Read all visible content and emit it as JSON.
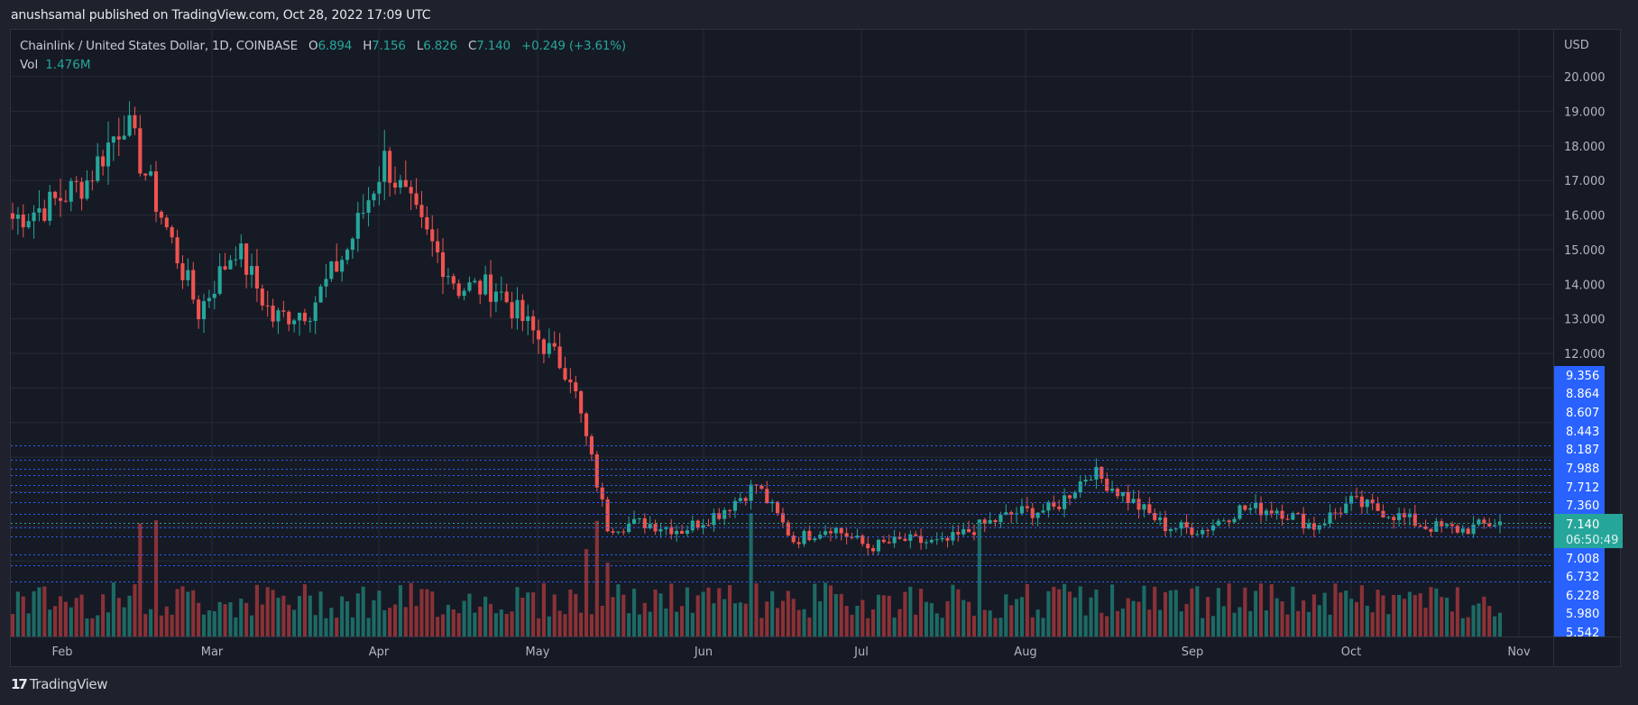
{
  "header": {
    "published": "anushsamal published on TradingView.com, Oct 28, 2022 17:09 UTC"
  },
  "legend": {
    "symbol": "Chainlink / United States Dollar, 1D, COINBASE",
    "o_label": "O",
    "o_value": "6.894",
    "h_label": "H",
    "h_value": "7.156",
    "l_label": "L",
    "l_value": "6.826",
    "c_label": "C",
    "c_value": "7.140",
    "change": "+0.249 (+3.61%)",
    "vol_label": "Vol",
    "vol_value": "1.476M"
  },
  "price_axis": {
    "currency": "USD",
    "ticks": [
      "20.000",
      "19.000",
      "18.000",
      "17.000",
      "16.000",
      "15.000",
      "14.000",
      "13.000",
      "12.000"
    ],
    "level_labels": [
      "9.356",
      "8.864",
      "8.607",
      "8.443",
      "8.187",
      "7.988",
      "7.712",
      "7.360",
      "7.008",
      "6.732",
      "6.228",
      "5.980",
      "5.542"
    ],
    "current_price": "7.140",
    "countdown": "06:50:49"
  },
  "time_axis": {
    "labels": [
      "Feb",
      "Mar",
      "Apr",
      "May",
      "Jun",
      "Jul",
      "Aug",
      "Sep",
      "Oct",
      "Nov"
    ]
  },
  "footer": {
    "logo_mark": "17",
    "brand": "TradingView"
  },
  "colors": {
    "up": "#26a69a",
    "down": "#ef5350",
    "vol_up": "#1d6a64",
    "vol_down": "#8a3237",
    "level_line": "#2962ff",
    "price_line": "#26a69a",
    "grid": "#262a36",
    "background": "#161a25"
  },
  "chart_data": {
    "type": "candlestick",
    "title": "Chainlink / United States Dollar, 1D, COINBASE",
    "xlabel": "",
    "ylabel": "USD",
    "ylim": [
      5.4,
      20.3
    ],
    "x_ticks": [
      "Feb",
      "Mar",
      "Apr",
      "May",
      "Jun",
      "Jul",
      "Aug",
      "Sep",
      "Oct",
      "Nov"
    ],
    "y_ticks": [
      20,
      19,
      18,
      17,
      16,
      15,
      14,
      13,
      12
    ],
    "horizontal_levels": [
      9.356,
      8.864,
      8.607,
      8.443,
      8.187,
      7.988,
      7.712,
      7.36,
      7.008,
      6.732,
      6.228,
      5.98,
      5.542
    ],
    "last": {
      "open": 6.894,
      "high": 7.156,
      "low": 6.826,
      "close": 7.14,
      "change": 0.249,
      "change_pct": 3.61,
      "volume": "1.476M"
    },
    "approx_closes_weekly": [
      {
        "date": "2022-01-19",
        "close": 15.9
      },
      {
        "date": "2022-01-26",
        "close": 16.3
      },
      {
        "date": "2022-02-02",
        "close": 17.0
      },
      {
        "date": "2022-02-09",
        "close": 18.8
      },
      {
        "date": "2022-02-16",
        "close": 16.0
      },
      {
        "date": "2022-02-23",
        "close": 13.2
      },
      {
        "date": "2022-03-02",
        "close": 15.1
      },
      {
        "date": "2022-03-09",
        "close": 13.0
      },
      {
        "date": "2022-03-16",
        "close": 13.3
      },
      {
        "date": "2022-03-23",
        "close": 15.0
      },
      {
        "date": "2022-03-30",
        "close": 17.6
      },
      {
        "date": "2022-04-06",
        "close": 15.6
      },
      {
        "date": "2022-04-13",
        "close": 13.9
      },
      {
        "date": "2022-04-20",
        "close": 13.9
      },
      {
        "date": "2022-04-27",
        "close": 12.6
      },
      {
        "date": "2022-05-04",
        "close": 11.4
      },
      {
        "date": "2022-05-11",
        "close": 7.0
      },
      {
        "date": "2022-05-18",
        "close": 7.1
      },
      {
        "date": "2022-05-25",
        "close": 6.9
      },
      {
        "date": "2022-06-01",
        "close": 7.4
      },
      {
        "date": "2022-06-08",
        "close": 8.2
      },
      {
        "date": "2022-06-15",
        "close": 6.6
      },
      {
        "date": "2022-06-22",
        "close": 7.0
      },
      {
        "date": "2022-06-29",
        "close": 6.4
      },
      {
        "date": "2022-07-06",
        "close": 6.6
      },
      {
        "date": "2022-07-13",
        "close": 6.5
      },
      {
        "date": "2022-07-20",
        "close": 7.0
      },
      {
        "date": "2022-07-27",
        "close": 7.4
      },
      {
        "date": "2022-08-03",
        "close": 7.5
      },
      {
        "date": "2022-08-10",
        "close": 8.6
      },
      {
        "date": "2022-08-17",
        "close": 7.8
      },
      {
        "date": "2022-08-24",
        "close": 7.0
      },
      {
        "date": "2022-08-31",
        "close": 6.9
      },
      {
        "date": "2022-09-07",
        "close": 7.5
      },
      {
        "date": "2022-09-14",
        "close": 7.5
      },
      {
        "date": "2022-09-21",
        "close": 7.0
      },
      {
        "date": "2022-09-28",
        "close": 7.7
      },
      {
        "date": "2022-10-05",
        "close": 7.4
      },
      {
        "date": "2022-10-12",
        "close": 7.0
      },
      {
        "date": "2022-10-19",
        "close": 6.9
      },
      {
        "date": "2022-10-28",
        "close": 7.14
      }
    ]
  }
}
